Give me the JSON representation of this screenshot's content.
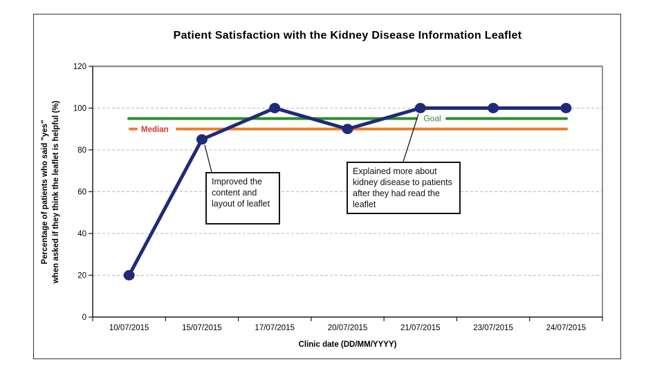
{
  "chart_data": {
    "type": "line",
    "title": "Patient Satisfaction with the Kidney Disease Information Leaflet",
    "categories": [
      "10/07/2015",
      "15/07/2015",
      "17/07/2015",
      "20/07/2015",
      "21/07/2015",
      "23/07/2015",
      "24/07/2015"
    ],
    "series": [
      {
        "values": [
          20,
          85,
          100,
          90,
          100,
          100,
          100
        ],
        "color": "#1f2b78"
      }
    ],
    "reference_lines": [
      {
        "name": "Goal",
        "value": 95,
        "line_color": "#2e8b2e",
        "label_color": "#2e8b2e"
      },
      {
        "name": "Median",
        "value": 90,
        "line_color": "#e8812b",
        "label_color": "#cf372e"
      }
    ],
    "annotations": [
      {
        "text": "Improved the content and layout of leaflet",
        "target": "15/07/2015"
      },
      {
        "text": "Explained more about kidney disease to patients after they had read the leaflet",
        "target": "21/07/2015"
      }
    ],
    "xlabel": "Clinic date (DD/MM/YYYY)",
    "ylabel_lines": [
      "Percentage of patients who said \"yes\"",
      "when asked if they think the leaflet is helpful (%)"
    ],
    "ylim": [
      0,
      120
    ],
    "yticks": [
      0,
      20,
      40,
      60,
      80,
      100,
      120
    ],
    "grid": "horizontal-dashed",
    "legend": "none",
    "colors": {
      "grid": "#b8b8b8",
      "plot_border": "#8f8f8f",
      "axis": "#1a1a1a",
      "callout": "#1a1a1a"
    }
  }
}
